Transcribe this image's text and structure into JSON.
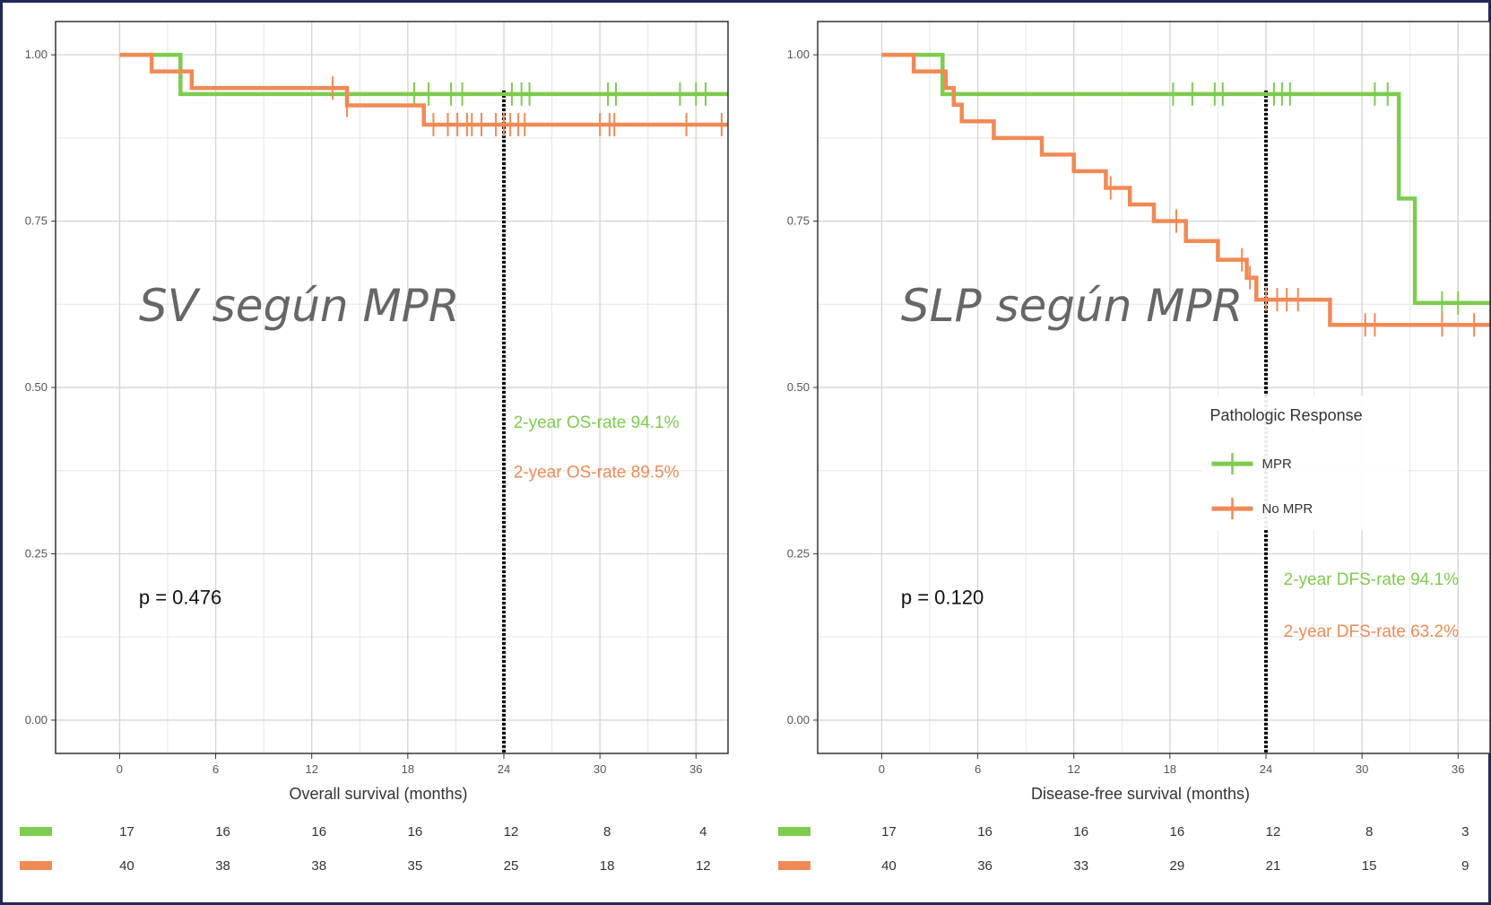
{
  "colors": {
    "mpr": "#7dcc4e",
    "no_mpr": "#f08a55",
    "frame": "#1f2a5a",
    "grid": "#e6e6e6",
    "panel_border": "#333333"
  },
  "chart_data": [
    {
      "type": "line",
      "overlay_title": "SV según MPR",
      "xlabel": "Overall survival (months)",
      "ylabel": "",
      "xlim": [
        -4,
        38
      ],
      "ylim": [
        -0.05,
        1.05
      ],
      "x_ticks": [
        "0",
        "6",
        "12",
        "18",
        "24",
        "30",
        "36"
      ],
      "y_ticks": [
        "0.00",
        "0.25",
        "0.50",
        "0.75",
        "1.00"
      ],
      "grid": true,
      "reference_line_x": 24,
      "p_value": "p = 0.476",
      "rate_labels": [
        "2-year OS-rate 94.1%",
        "2-year OS-rate 89.5%"
      ],
      "series": [
        {
          "name": "MPR",
          "color": "#7dcc4e",
          "steps": [
            [
              0,
              1.0
            ],
            [
              3.8,
              0.941
            ],
            [
              38,
              0.941
            ]
          ],
          "censors": [
            18.4,
            19.3,
            20.7,
            21.4,
            24.5,
            25.1,
            25.6,
            30.5,
            31.0,
            35.0,
            36.0,
            36.6
          ]
        },
        {
          "name": "No MPR",
          "color": "#f08a55",
          "steps": [
            [
              0,
              1.0
            ],
            [
              2.0,
              0.975
            ],
            [
              4.5,
              0.95
            ],
            [
              14.2,
              0.924
            ],
            [
              19.0,
              0.895
            ],
            [
              38,
              0.895
            ]
          ],
          "censors": [
            13.3,
            14.2,
            19.6,
            20.5,
            21.1,
            21.7,
            22.0,
            22.6,
            23.5,
            24.0,
            24.4,
            24.9,
            25.3,
            30.0,
            30.6,
            30.9,
            35.4,
            37.6
          ]
        }
      ],
      "risk_table": {
        "x": [
          0,
          6,
          12,
          18,
          24,
          30,
          36
        ],
        "rows": [
          {
            "color": "#7dcc4e",
            "values": [
              "17",
              "16",
              "16",
              "16",
              "12",
              "8",
              "4"
            ]
          },
          {
            "color": "#f08a55",
            "values": [
              "40",
              "38",
              "38",
              "35",
              "25",
              "18",
              "12"
            ]
          }
        ]
      }
    },
    {
      "type": "line",
      "overlay_title": "SLP según MPR",
      "xlabel": "Disease-free survival (months)",
      "ylabel": "",
      "xlim": [
        -4,
        38
      ],
      "ylim": [
        -0.05,
        1.05
      ],
      "x_ticks": [
        "0",
        "6",
        "12",
        "18",
        "24",
        "30",
        "36"
      ],
      "y_ticks": [
        "0.00",
        "0.25",
        "0.50",
        "0.75",
        "1.00"
      ],
      "grid": true,
      "reference_line_x": 24,
      "p_value": "p = 0.120",
      "rate_labels": [
        "2-year DFS-rate 94.1%",
        "2-year DFS-rate 63.2%"
      ],
      "legend": {
        "title": "Pathologic Response",
        "placement": "right",
        "items": [
          {
            "label": "MPR",
            "color": "#7dcc4e"
          },
          {
            "label": "No MPR",
            "color": "#f08a55"
          }
        ]
      },
      "series": [
        {
          "name": "MPR",
          "color": "#7dcc4e",
          "steps": [
            [
              0,
              1.0
            ],
            [
              3.8,
              0.941
            ],
            [
              31.5,
              0.941
            ],
            [
              32.3,
              0.784
            ],
            [
              32.7,
              0.784
            ],
            [
              33.3,
              0.627
            ],
            [
              38,
              0.627
            ]
          ],
          "censors": [
            18.2,
            19.4,
            20.8,
            21.3,
            24.5,
            25.0,
            25.5,
            30.8,
            31.6,
            35.0,
            36.0
          ]
        },
        {
          "name": "No MPR",
          "color": "#f08a55",
          "steps": [
            [
              0,
              1.0
            ],
            [
              2.0,
              0.975
            ],
            [
              4.0,
              0.95
            ],
            [
              4.5,
              0.925
            ],
            [
              5.0,
              0.9
            ],
            [
              7.0,
              0.875
            ],
            [
              10.0,
              0.85
            ],
            [
              12.0,
              0.825
            ],
            [
              14.0,
              0.8
            ],
            [
              15.5,
              0.775
            ],
            [
              17.0,
              0.75
            ],
            [
              19.0,
              0.72
            ],
            [
              21.0,
              0.692
            ],
            [
              22.8,
              0.665
            ],
            [
              23.4,
              0.632
            ],
            [
              28.0,
              0.594
            ],
            [
              38,
              0.594
            ]
          ],
          "censors": [
            14.3,
            18.4,
            22.5,
            23.0,
            24.0,
            24.7,
            25.3,
            26.0,
            30.2,
            30.8,
            35.0,
            37.0
          ]
        }
      ],
      "risk_table": {
        "x": [
          0,
          6,
          12,
          18,
          24,
          30,
          36
        ],
        "rows": [
          {
            "color": "#7dcc4e",
            "values": [
              "17",
              "16",
              "16",
              "16",
              "12",
              "8",
              "3"
            ]
          },
          {
            "color": "#f08a55",
            "values": [
              "40",
              "36",
              "33",
              "29",
              "21",
              "15",
              "9"
            ]
          }
        ]
      }
    }
  ]
}
